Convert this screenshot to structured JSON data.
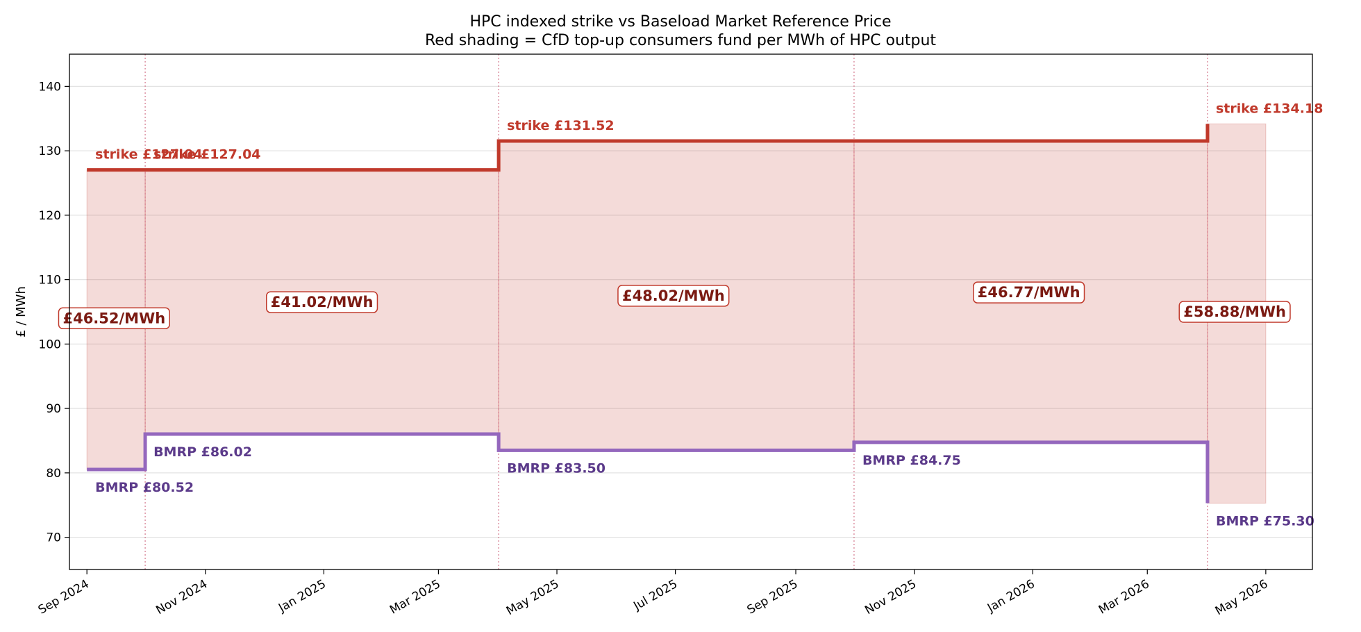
{
  "chart_data": {
    "type": "area",
    "title": "HPC indexed strike vs Baseload Market Reference Price",
    "subtitle": "Red shading = CfD top-up consumers fund per MWh of HPC output",
    "ylabel": "£ / MWh",
    "xlabel": "",
    "ylim": [
      65,
      145
    ],
    "xlim": [
      "2024-08-23",
      "2026-05-25"
    ],
    "grid": true,
    "y_ticks": [
      70,
      80,
      90,
      100,
      110,
      120,
      130,
      140
    ],
    "x_ticks": [
      {
        "date": "2024-09-01",
        "label": "Sep 2024"
      },
      {
        "date": "2024-11-01",
        "label": "Nov 2024"
      },
      {
        "date": "2025-01-01",
        "label": "Jan 2025"
      },
      {
        "date": "2025-03-01",
        "label": "Mar 2025"
      },
      {
        "date": "2025-05-01",
        "label": "May 2025"
      },
      {
        "date": "2025-07-01",
        "label": "Jul 2025"
      },
      {
        "date": "2025-09-01",
        "label": "Sep 2025"
      },
      {
        "date": "2025-11-01",
        "label": "Nov 2025"
      },
      {
        "date": "2026-01-01",
        "label": "Jan 2026"
      },
      {
        "date": "2026-03-01",
        "label": "Mar 2026"
      },
      {
        "date": "2026-05-01",
        "label": "May 2026"
      }
    ],
    "boundaries": [
      "2024-10-01",
      "2025-04-01",
      "2025-10-01",
      "2026-04-01"
    ],
    "series": [
      {
        "key": "strike",
        "values": [
          127.04,
          127.04,
          131.52,
          131.52,
          134.18
        ]
      },
      {
        "key": "bmrp",
        "values": [
          80.52,
          86.02,
          83.5,
          84.75,
          75.3
        ]
      }
    ],
    "periods": [
      {
        "start": "2024-09-01",
        "end": "2024-10-01",
        "strike": 127.04,
        "bmrp": 80.52
      },
      {
        "start": "2024-10-01",
        "end": "2025-04-01",
        "strike": 127.04,
        "bmrp": 86.02
      },
      {
        "start": "2025-04-01",
        "end": "2025-10-01",
        "strike": 131.52,
        "bmrp": 83.5
      },
      {
        "start": "2025-10-01",
        "end": "2026-04-01",
        "strike": 131.52,
        "bmrp": 84.75
      },
      {
        "start": "2026-04-01",
        "end": "2026-05-01",
        "strike": 134.18,
        "bmrp": 75.3
      }
    ],
    "strike_labels": [
      {
        "date": "2024-09-01",
        "value": 127.04,
        "text": "strike  £127.04"
      },
      {
        "date": "2024-10-01",
        "value": 127.04,
        "text": "strike  £127.04"
      },
      {
        "date": "2025-04-01",
        "value": 131.52,
        "text": "strike  £131.52"
      },
      {
        "date": "2026-04-01",
        "value": 134.18,
        "text": "strike  £134.18"
      }
    ],
    "bmrp_labels": [
      {
        "date": "2024-09-01",
        "value": 80.52,
        "text": "BMRP  £80.52"
      },
      {
        "date": "2024-10-01",
        "value": 86.02,
        "text": "BMRP  £86.02"
      },
      {
        "date": "2025-04-01",
        "value": 83.5,
        "text": "BMRP  £83.50"
      },
      {
        "date": "2025-10-01",
        "value": 84.75,
        "text": "BMRP  £84.75"
      },
      {
        "date": "2026-04-01",
        "value": 75.3,
        "text": "BMRP  £75.30"
      }
    ],
    "gap_labels": [
      {
        "date": "2024-09-15",
        "value": 104,
        "text": "£46.52/MWh"
      },
      {
        "date": "2024-12-31",
        "value": 106.5,
        "text": "£41.02/MWh"
      },
      {
        "date": "2025-06-30",
        "value": 107.5,
        "text": "£48.02/MWh"
      },
      {
        "date": "2025-12-30",
        "value": 108,
        "text": "£46.77/MWh"
      },
      {
        "date": "2026-04-15",
        "value": 105,
        "text": "£58.88/MWh"
      }
    ],
    "colors": {
      "strike": "#c0392b",
      "bmrp": "#9467bd",
      "bmrp_label": "#5b3a8a",
      "fill": "#c0392b",
      "gap_text": "#7b1a12",
      "gap_border": "#c0392b",
      "boundary": "#d4778c"
    }
  }
}
